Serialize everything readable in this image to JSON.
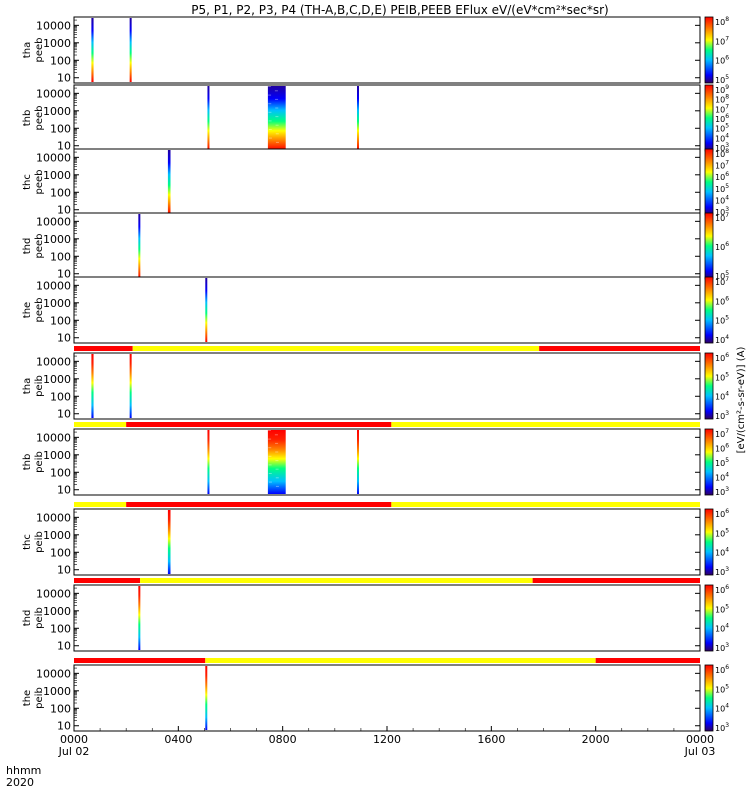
{
  "title": "P5, P1, P2, P3, P4 (TH-A,B,C,D,E) PEIB,PEEB EFlux eV/(eV*cm²*sec*sr)",
  "time_axis": {
    "label_line1": "hhmm",
    "label_line2": "2020",
    "ticks": [
      {
        "t": 0,
        "text": "0000",
        "sub": "Jul 02"
      },
      {
        "t": 240,
        "text": "0400",
        "sub": ""
      },
      {
        "t": 480,
        "text": "0800",
        "sub": ""
      },
      {
        "t": 720,
        "text": "1200",
        "sub": ""
      },
      {
        "t": 960,
        "text": "1600",
        "sub": ""
      },
      {
        "t": 1200,
        "text": "2000",
        "sub": ""
      },
      {
        "t": 1440,
        "text": "0000",
        "sub": "Jul 03"
      }
    ]
  },
  "colorbar_label": "[eV/(cm²-s-sr-eV)] (A)",
  "chart_data": {
    "type": "heatmap",
    "x_unit": "minutes since 0000 UT Jul 02 2020",
    "xlim": [
      0,
      1440
    ],
    "y_scale": "log",
    "ylim_eV": [
      5,
      30000
    ],
    "y_ticks": [
      "10",
      "100",
      "1000",
      "10000"
    ],
    "panels": [
      {
        "label1": "tha",
        "label2": "peeb",
        "cb_min_exp": 5,
        "cb_max_exp": 8,
        "bursts": [
          {
            "t0": 40,
            "t1": 45,
            "kind": "electron"
          },
          {
            "t0": 128,
            "t1": 132,
            "kind": "electron"
          }
        ]
      },
      {
        "label1": "thb",
        "label2": "peeb",
        "cb_min_exp": 3,
        "cb_max_exp": 9,
        "bursts": [
          {
            "t0": 307,
            "t1": 311,
            "kind": "electron"
          },
          {
            "t0": 446,
            "t1": 487,
            "kind": "electron_wide"
          },
          {
            "t0": 651,
            "t1": 655,
            "kind": "electron"
          }
        ]
      },
      {
        "label1": "thc",
        "label2": "peeb",
        "cb_min_exp": 3,
        "cb_max_exp": 8,
        "bursts": [
          {
            "t0": 216,
            "t1": 222,
            "kind": "electron"
          }
        ]
      },
      {
        "label1": "thd",
        "label2": "peeb",
        "cb_min_exp": 5,
        "cb_max_exp": 7,
        "bursts": [
          {
            "t0": 148,
            "t1": 150,
            "kind": "electron"
          }
        ]
      },
      {
        "label1": "the",
        "label2": "peeb",
        "cb_min_exp": 4,
        "cb_max_exp": 7,
        "bursts": [
          {
            "t0": 302,
            "t1": 304,
            "kind": "electron"
          }
        ]
      },
      {
        "label1": "tha",
        "label2": "peib",
        "cb_min_exp": 3,
        "cb_max_exp": 6,
        "bursts": [
          {
            "t0": 40,
            "t1": 45,
            "kind": "ion"
          },
          {
            "t0": 128,
            "t1": 132,
            "kind": "ion"
          }
        ],
        "status_bar": [
          {
            "t0": 0,
            "t1": 135,
            "c": "red"
          },
          {
            "t0": 135,
            "t1": 1070,
            "c": "yellow"
          },
          {
            "t0": 1070,
            "t1": 1440,
            "c": "red"
          }
        ]
      },
      {
        "label1": "thb",
        "label2": "peib",
        "cb_min_exp": 3,
        "cb_max_exp": 7,
        "bursts": [
          {
            "t0": 307,
            "t1": 311,
            "kind": "ion"
          },
          {
            "t0": 446,
            "t1": 487,
            "kind": "ion_wide"
          },
          {
            "t0": 651,
            "t1": 655,
            "kind": "ion"
          }
        ],
        "status_bar": [
          {
            "t0": 0,
            "t1": 120,
            "c": "yellow"
          },
          {
            "t0": 120,
            "t1": 730,
            "c": "red"
          },
          {
            "t0": 730,
            "t1": 1440,
            "c": "yellow"
          }
        ]
      },
      {
        "label1": "thc",
        "label2": "peib",
        "cb_min_exp": 3,
        "cb_max_exp": 6,
        "bursts": [
          {
            "t0": 216,
            "t1": 222,
            "kind": "ion"
          }
        ],
        "status_bar": [
          {
            "t0": 0,
            "t1": 120,
            "c": "yellow"
          },
          {
            "t0": 120,
            "t1": 730,
            "c": "red"
          },
          {
            "t0": 730,
            "t1": 1440,
            "c": "yellow"
          }
        ]
      },
      {
        "label1": "thd",
        "label2": "peib",
        "cb_min_exp": 3,
        "cb_max_exp": 6,
        "bursts": [
          {
            "t0": 148,
            "t1": 150,
            "kind": "ion"
          }
        ],
        "status_bar": [
          {
            "t0": 0,
            "t1": 152,
            "c": "red"
          },
          {
            "t0": 152,
            "t1": 1055,
            "c": "yellow"
          },
          {
            "t0": 1055,
            "t1": 1440,
            "c": "red"
          }
        ]
      },
      {
        "label1": "the",
        "label2": "peib",
        "cb_min_exp": 3,
        "cb_max_exp": 6,
        "bursts": [
          {
            "t0": 302,
            "t1": 304,
            "kind": "ion"
          }
        ],
        "status_bar": [
          {
            "t0": 0,
            "t1": 302,
            "c": "red"
          },
          {
            "t0": 302,
            "t1": 1200,
            "c": "yellow"
          },
          {
            "t0": 1200,
            "t1": 1440,
            "c": "red"
          }
        ]
      }
    ]
  }
}
